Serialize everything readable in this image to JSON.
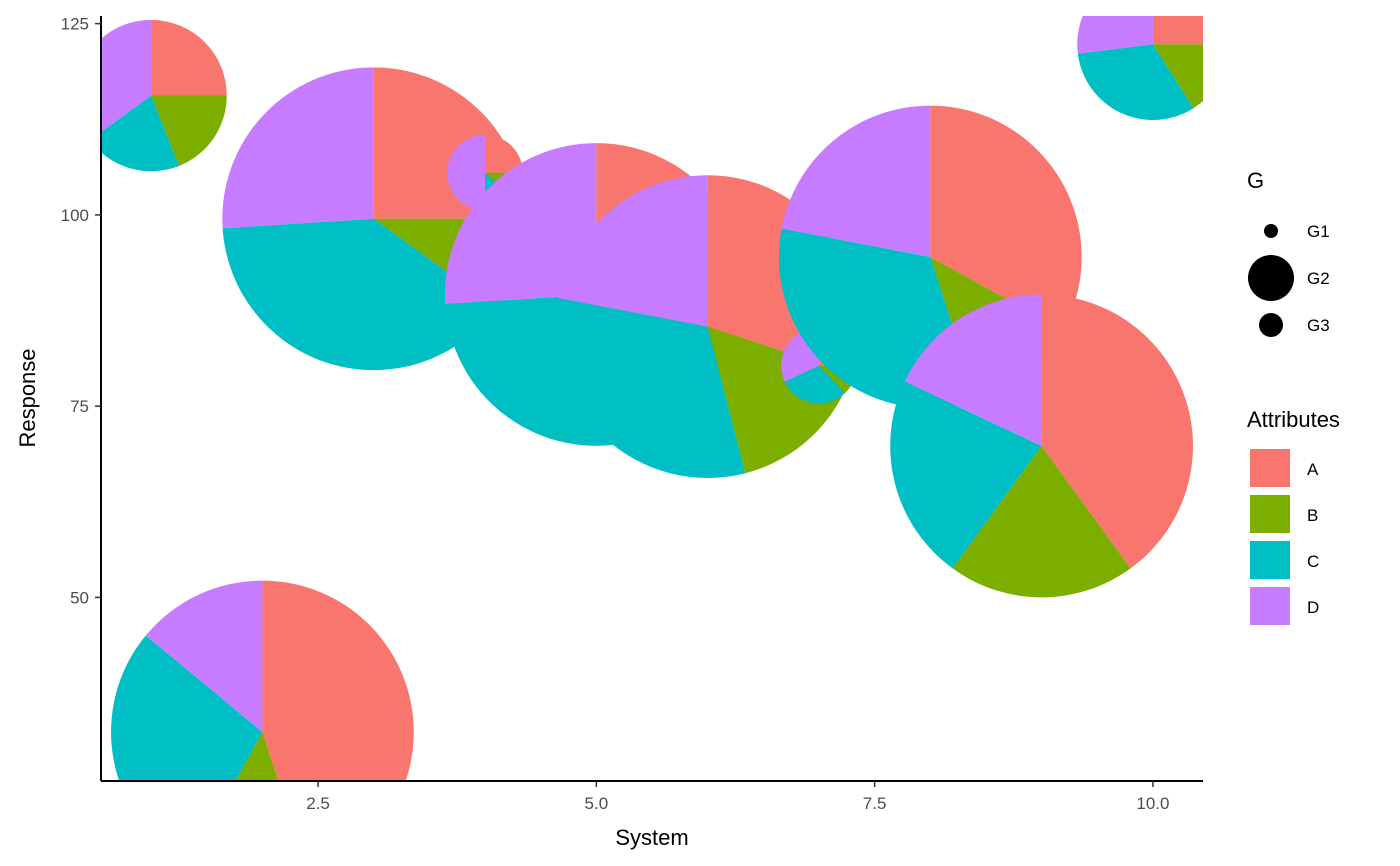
{
  "chart_data": {
    "type": "scatter",
    "subtype": "pie-scatter",
    "xlabel": "System",
    "ylabel": "Response",
    "xlim": [
      0.55,
      10.45
    ],
    "ylim": [
      26,
      126
    ],
    "x_ticks": [
      2.5,
      5.0,
      7.5,
      10.0
    ],
    "x_tick_labels": [
      "2.5",
      "5.0",
      "7.5",
      "10.0"
    ],
    "y_ticks": [
      50,
      75,
      100,
      125
    ],
    "y_tick_labels": [
      "50",
      "75",
      "100",
      "125"
    ],
    "grid": false,
    "attributes": [
      "A",
      "B",
      "C",
      "D"
    ],
    "colors": {
      "A": "#F8766D",
      "B": "#7CAE00",
      "C": "#00BFC4",
      "D": "#C77CFF"
    },
    "size_legend": {
      "title": "G",
      "entries": [
        {
          "label": "G1",
          "size": "small"
        },
        {
          "label": "G2",
          "size": "large"
        },
        {
          "label": "G3",
          "size": "medium"
        }
      ]
    },
    "fill_legend": {
      "title": "Attributes",
      "entries": [
        "A",
        "B",
        "C",
        "D"
      ]
    },
    "legend_position": "right",
    "pies": [
      {
        "system": 1,
        "response": 115.6,
        "radius": 0.68,
        "values": {
          "A": 25,
          "B": 19,
          "C": 21,
          "D": 35
        }
      },
      {
        "system": 2,
        "response": 32.4,
        "radius": 1.36,
        "values": {
          "A": 45,
          "B": 13,
          "C": 28,
          "D": 14
        }
      },
      {
        "system": 3,
        "response": 99.5,
        "radius": 1.36,
        "values": {
          "A": 25,
          "B": 10,
          "C": 39,
          "D": 26
        }
      },
      {
        "system": 4,
        "response": 105.5,
        "radius": 0.34,
        "values": {
          "A": 25,
          "B": 12,
          "C": 13,
          "D": 50
        }
      },
      {
        "system": 5,
        "response": 89.6,
        "radius": 1.36,
        "values": {
          "A": 30,
          "B": 12,
          "C": 32,
          "D": 26
        }
      },
      {
        "system": 6,
        "response": 85.4,
        "radius": 1.36,
        "values": {
          "A": 30,
          "B": 16,
          "C": 32,
          "D": 22
        }
      },
      {
        "system": 7,
        "response": 80.3,
        "radius": 0.34,
        "values": {
          "A": 25,
          "B": 13,
          "C": 30,
          "D": 32
        }
      },
      {
        "system": 8,
        "response": 94.5,
        "radius": 1.36,
        "values": {
          "A": 33,
          "B": 12,
          "C": 33,
          "D": 22
        }
      },
      {
        "system": 9,
        "response": 69.8,
        "radius": 1.36,
        "values": {
          "A": 40,
          "B": 20,
          "C": 22,
          "D": 18
        }
      },
      {
        "system": 10,
        "response": 122.3,
        "radius": 0.68,
        "values": {
          "A": 25,
          "B": 16,
          "C": 32,
          "D": 27
        }
      }
    ]
  }
}
